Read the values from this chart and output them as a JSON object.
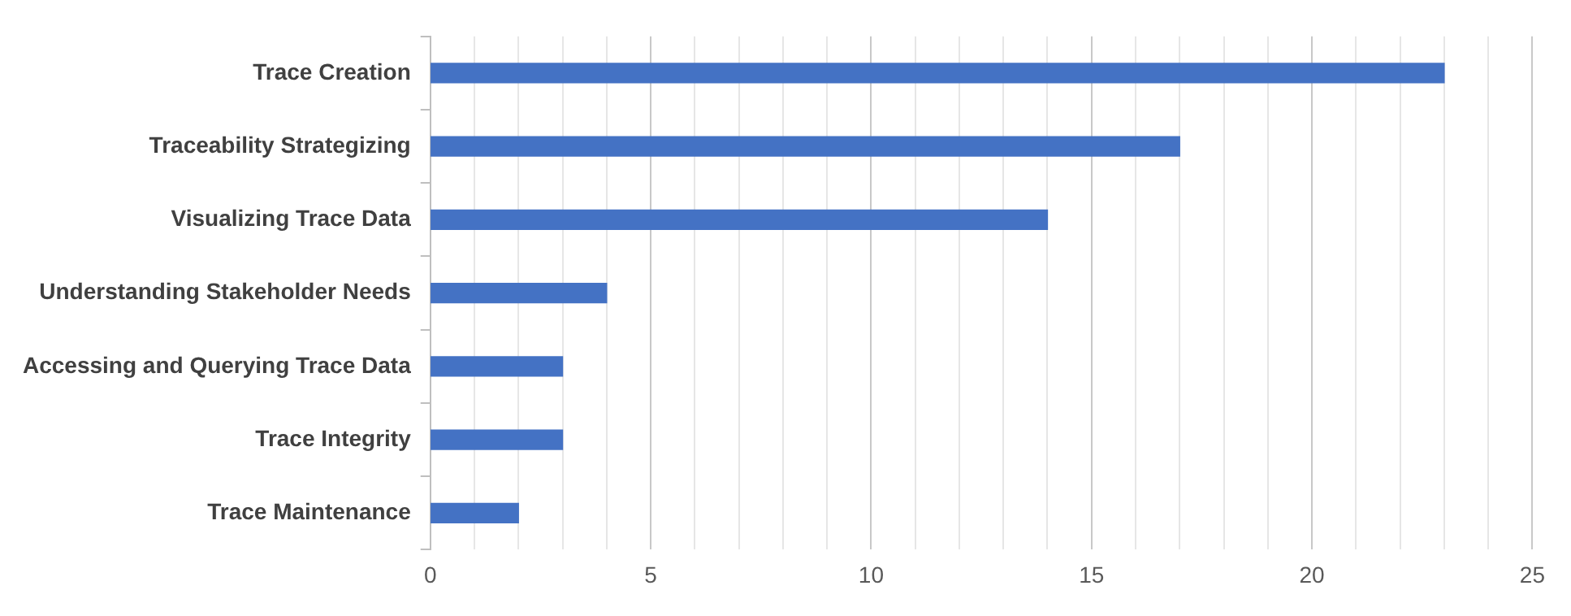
{
  "chart_data": {
    "type": "bar",
    "orientation": "horizontal",
    "categories": [
      "Trace Creation",
      "Traceability Strategizing",
      "Visualizing Trace Data",
      "Understanding Stakeholder Needs",
      "Accessing and Querying Trace Data",
      "Trace Integrity",
      "Trace Maintenance"
    ],
    "values": [
      23,
      17,
      14,
      4,
      3,
      3,
      2
    ],
    "color": "#4472c4",
    "xlim": [
      0,
      25
    ],
    "xticks": [
      0,
      {
        "value": 1,
        "label": null
      },
      {
        "value": 2,
        "label": null
      },
      {
        "value": 3,
        "label": null
      },
      {
        "value": 4,
        "label": null
      },
      5,
      {
        "value": 6,
        "label": null
      },
      {
        "value": 7,
        "label": null
      },
      {
        "value": 8,
        "label": null
      },
      {
        "value": 9,
        "label": null
      },
      10,
      {
        "value": 11,
        "label": null
      },
      {
        "value": 12,
        "label": null
      },
      {
        "value": 13,
        "label": null
      },
      {
        "value": 14,
        "label": null
      },
      15,
      {
        "value": 16,
        "label": null
      },
      {
        "value": 17,
        "label": null
      },
      {
        "value": 18,
        "label": null
      },
      {
        "value": 19,
        "label": null
      },
      20,
      {
        "value": 21,
        "label": null
      },
      {
        "value": 22,
        "label": null
      },
      {
        "value": 23,
        "label": null
      },
      {
        "value": 24,
        "label": null
      },
      25
    ],
    "grid": "x",
    "legend": false
  }
}
